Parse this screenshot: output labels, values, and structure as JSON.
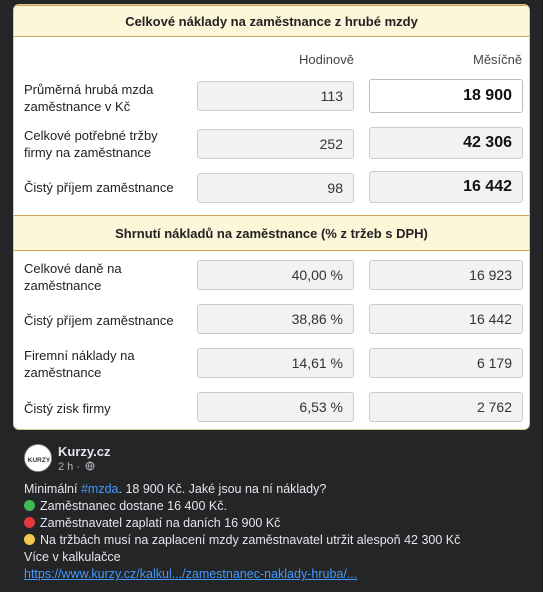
{
  "card": {
    "title": "Celkové náklady na zaměstnance z hrubé mzdy",
    "col_hourly": "Hodinově",
    "col_monthly": "Měsíčně",
    "rows": [
      {
        "label1": "Průměrná hrubá mzda",
        "label2": "zaměstnance v Kč",
        "hourly": "113",
        "monthly": "18 900"
      },
      {
        "label1": "Celkové potřebné tržby",
        "label2": "firmy na zaměstnance",
        "hourly": "252",
        "monthly": "42 306"
      },
      {
        "label1": "Čistý příjem zaměstnance",
        "label2": "",
        "hourly": "98",
        "monthly": "16 442"
      }
    ],
    "summary_title": "Shrnutí nákladů na zaměstnance (% z tržeb s DPH)",
    "summary_rows": [
      {
        "label1": "Celkové daně na",
        "label2": "zaměstnance",
        "pct": "40,00 %",
        "value": "16 923"
      },
      {
        "label1": "Čistý příjem zaměstnance",
        "label2": "",
        "pct": "38,86 %",
        "value": "16 442"
      },
      {
        "label1": "Firemní náklady na",
        "label2": "zaměstnance",
        "pct": "14,61 %",
        "value": "6 179"
      },
      {
        "label1": "Čistý zisk firmy",
        "label2": "",
        "pct": "6,53 %",
        "value": "2 762"
      }
    ]
  },
  "post": {
    "page_name": "Kurzy.cz",
    "time": "2 h ·",
    "avatar_text": "KURZY",
    "line1_pre": "Minimální ",
    "line1_hash": "#mzda",
    "line1_post": ". 18 900 Kč. Jaké jsou na ní náklady?",
    "line2": "Zaměstnanec dostane 16 400 Kč.",
    "line3": "Zaměstnavatel zaplatí na daních 16 900 Kč",
    "line4": "Na tržbách musí na zaplacení mzdy zaměstnavatel utržit alespoň 42 300 Kč",
    "line5": "Více v kalkulačce",
    "link": "https://www.kurzy.cz/kalkul.../zamestnanec-naklady-hruba/...",
    "colors": {
      "green": "#3fb950",
      "red": "#e5383b",
      "yellow": "#f2c94c"
    }
  }
}
